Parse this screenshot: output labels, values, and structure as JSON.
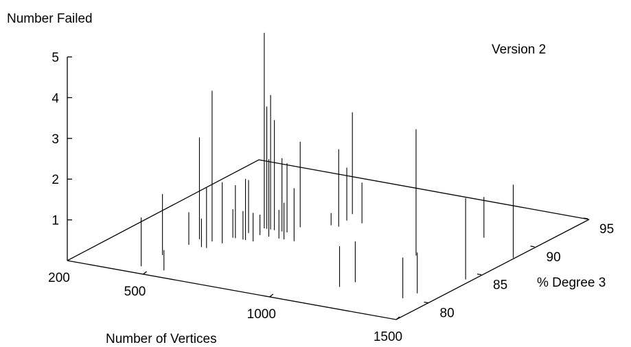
{
  "chart_data": {
    "type": "3d-impulse",
    "zlabel": "Number Failed",
    "annotation": "Version 2",
    "xlabel": "Number of Vertices",
    "ylabel": "% Degree 3",
    "x_ticks": [
      "200",
      "500",
      "1000",
      "1500"
    ],
    "y_ticks": [
      "80",
      "85",
      "90",
      "95"
    ],
    "z_ticks": [
      "1",
      "2",
      "3",
      "4",
      "5"
    ],
    "xlim": [
      200,
      1500
    ],
    "ylim": [
      77,
      95
    ],
    "zlim": [
      0,
      5
    ],
    "grid": false,
    "points": [
      {
        "x": 450,
        "y": 80,
        "z": 1.5
      },
      {
        "x": 450,
        "y": 78,
        "z": 1.2
      },
      {
        "x": 470,
        "y": 83,
        "z": 2.5
      },
      {
        "x": 470,
        "y": 82,
        "z": 0.8
      },
      {
        "x": 520,
        "y": 83,
        "z": 3.7
      },
      {
        "x": 520,
        "y": 82,
        "z": 0.7
      },
      {
        "x": 540,
        "y": 82,
        "z": 1.5
      },
      {
        "x": 540,
        "y": 78,
        "z": 0.5
      },
      {
        "x": 560,
        "y": 83,
        "z": 1.5
      },
      {
        "x": 560,
        "y": 84,
        "z": 0.7
      },
      {
        "x": 570,
        "y": 84,
        "z": 1.3
      },
      {
        "x": 580,
        "y": 85,
        "z": 1.3
      },
      {
        "x": 600,
        "y": 86,
        "z": 4.8
      },
      {
        "x": 600,
        "y": 84,
        "z": 0.7
      },
      {
        "x": 610,
        "y": 86,
        "z": 3.0
      },
      {
        "x": 610,
        "y": 84,
        "z": 1.5
      },
      {
        "x": 625,
        "y": 86,
        "z": 3.3
      },
      {
        "x": 625,
        "y": 85,
        "z": 0.5
      },
      {
        "x": 640,
        "y": 86,
        "z": 2.7
      },
      {
        "x": 640,
        "y": 84,
        "z": 0.7
      },
      {
        "x": 660,
        "y": 85,
        "z": 1.9
      },
      {
        "x": 670,
        "y": 86,
        "z": 1.8
      },
      {
        "x": 690,
        "y": 86,
        "z": 1.7
      },
      {
        "x": 700,
        "y": 87,
        "z": 2.1
      },
      {
        "x": 700,
        "y": 85,
        "z": 0.7
      },
      {
        "x": 720,
        "y": 85,
        "z": 0.9
      },
      {
        "x": 760,
        "y": 85,
        "z": 1.3
      },
      {
        "x": 780,
        "y": 90,
        "z": 2.5
      },
      {
        "x": 780,
        "y": 88,
        "z": 0.3
      },
      {
        "x": 800,
        "y": 89,
        "z": 1.3
      },
      {
        "x": 810,
        "y": 88,
        "z": 1.9
      },
      {
        "x": 860,
        "y": 89,
        "z": 1.0
      },
      {
        "x": 1150,
        "y": 80,
        "z": 1.0
      },
      {
        "x": 1170,
        "y": 81,
        "z": 1.0
      },
      {
        "x": 1200,
        "y": 86,
        "z": 3.1
      },
      {
        "x": 1300,
        "y": 90,
        "z": 1.0
      },
      {
        "x": 1400,
        "y": 80,
        "z": 1.0
      },
      {
        "x": 1415,
        "y": 81,
        "z": 1.0
      },
      {
        "x": 1480,
        "y": 84,
        "z": 2.0
      },
      {
        "x": 1500,
        "y": 88,
        "z": 1.8
      }
    ]
  }
}
